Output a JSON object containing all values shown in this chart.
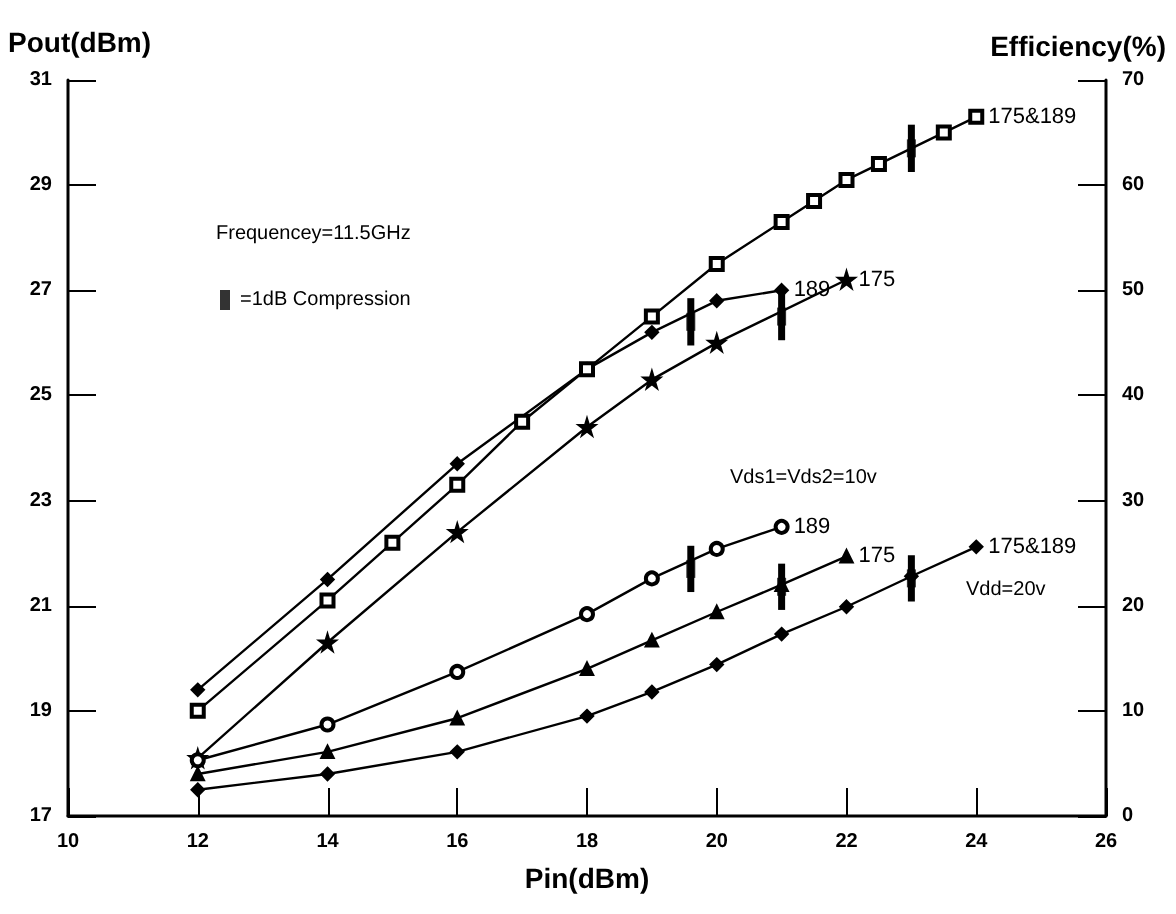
{
  "chart_data": {
    "type": "line",
    "xlabel": "Pin(dBm)",
    "ylabel": "Pout(dBm)",
    "y2label": "Efficiency(%)",
    "xlim": [
      10,
      26
    ],
    "xticks": [
      10,
      12,
      14,
      16,
      18,
      20,
      22,
      24,
      26
    ],
    "ylim": [
      17,
      31
    ],
    "yticks": [
      17,
      19,
      21,
      23,
      25,
      27,
      29,
      31
    ],
    "y2lim": [
      0,
      70
    ],
    "y2ticks": [
      0,
      10,
      20,
      30,
      40,
      50,
      60,
      70
    ],
    "grid": false,
    "legend": "top left",
    "line_style": "solid",
    "annotations": [
      "Frequencey=11.5GHz",
      "Vds1=Vds2=10v",
      "Vdd=20v"
    ],
    "series": [
      {
        "name": "189",
        "color": "#000000",
        "marker": "diamond",
        "x": [
          12,
          14,
          16,
          18,
          19,
          20,
          21
        ],
        "values": [
          19.4,
          21.5,
          23.7,
          25.5,
          26.2,
          26.8,
          27.0
        ]
      },
      {
        "name": "175&189",
        "color": "#000000",
        "marker": "square",
        "x": [
          12,
          14,
          15,
          16,
          17,
          18,
          19,
          20,
          21,
          21.5,
          22,
          22.5,
          23.5,
          24
        ],
        "values": [
          19.0,
          21.1,
          22.2,
          23.3,
          24.5,
          25.5,
          26.5,
          27.5,
          28.3,
          28.7,
          29.1,
          29.4,
          30.0,
          30.3
        ]
      },
      {
        "name": "175",
        "color": "#000000",
        "marker": "star",
        "x": [
          12,
          14,
          16,
          18,
          19,
          20,
          22
        ],
        "values": [
          18.1,
          20.3,
          22.4,
          24.4,
          25.3,
          26.0,
          27.2
        ]
      },
      {
        "name": "189",
        "color": "#000000",
        "marker": "circle",
        "axis": "y2",
        "x": [
          12,
          14,
          16,
          18,
          19,
          20,
          21
        ],
        "values": [
          5.3,
          8.7,
          13.7,
          19.2,
          22.6,
          25.4,
          27.5
        ]
      },
      {
        "name": "175",
        "color": "#000000",
        "marker": "triangle",
        "axis": "y2",
        "x": [
          12,
          14,
          16,
          18,
          19,
          20,
          21,
          22
        ],
        "values": [
          4.0,
          6.1,
          9.3,
          14.0,
          16.7,
          19.4,
          22.0,
          24.7
        ]
      },
      {
        "name": "175&189",
        "color": "#000000",
        "marker": "diamond",
        "axis": "y2",
        "x": [
          12,
          14,
          16,
          18,
          19,
          20,
          21,
          22,
          23,
          24
        ],
        "values": [
          2.5,
          4.0,
          6.1,
          9.5,
          11.8,
          14.4,
          17.3,
          19.9,
          22.8,
          25.6
        ]
      },
      {
        "name": "=1dB Compression",
        "type": "scatter",
        "color": "#000000",
        "marker": "square",
        "x": [
          19.6,
          21,
          23
        ],
        "values": [
          26.4,
          26.5,
          29.7
        ],
        "errors": [
          0.45,
          0.45,
          0.45
        ]
      },
      {
        "type": "scatter",
        "color": "#000000",
        "marker": "square",
        "axis": "y2",
        "x": [
          19.6,
          21,
          23
        ],
        "values": [
          23.5,
          21.8,
          22.6
        ],
        "errors": [
          2.2,
          2.2,
          2.2
        ]
      }
    ]
  }
}
